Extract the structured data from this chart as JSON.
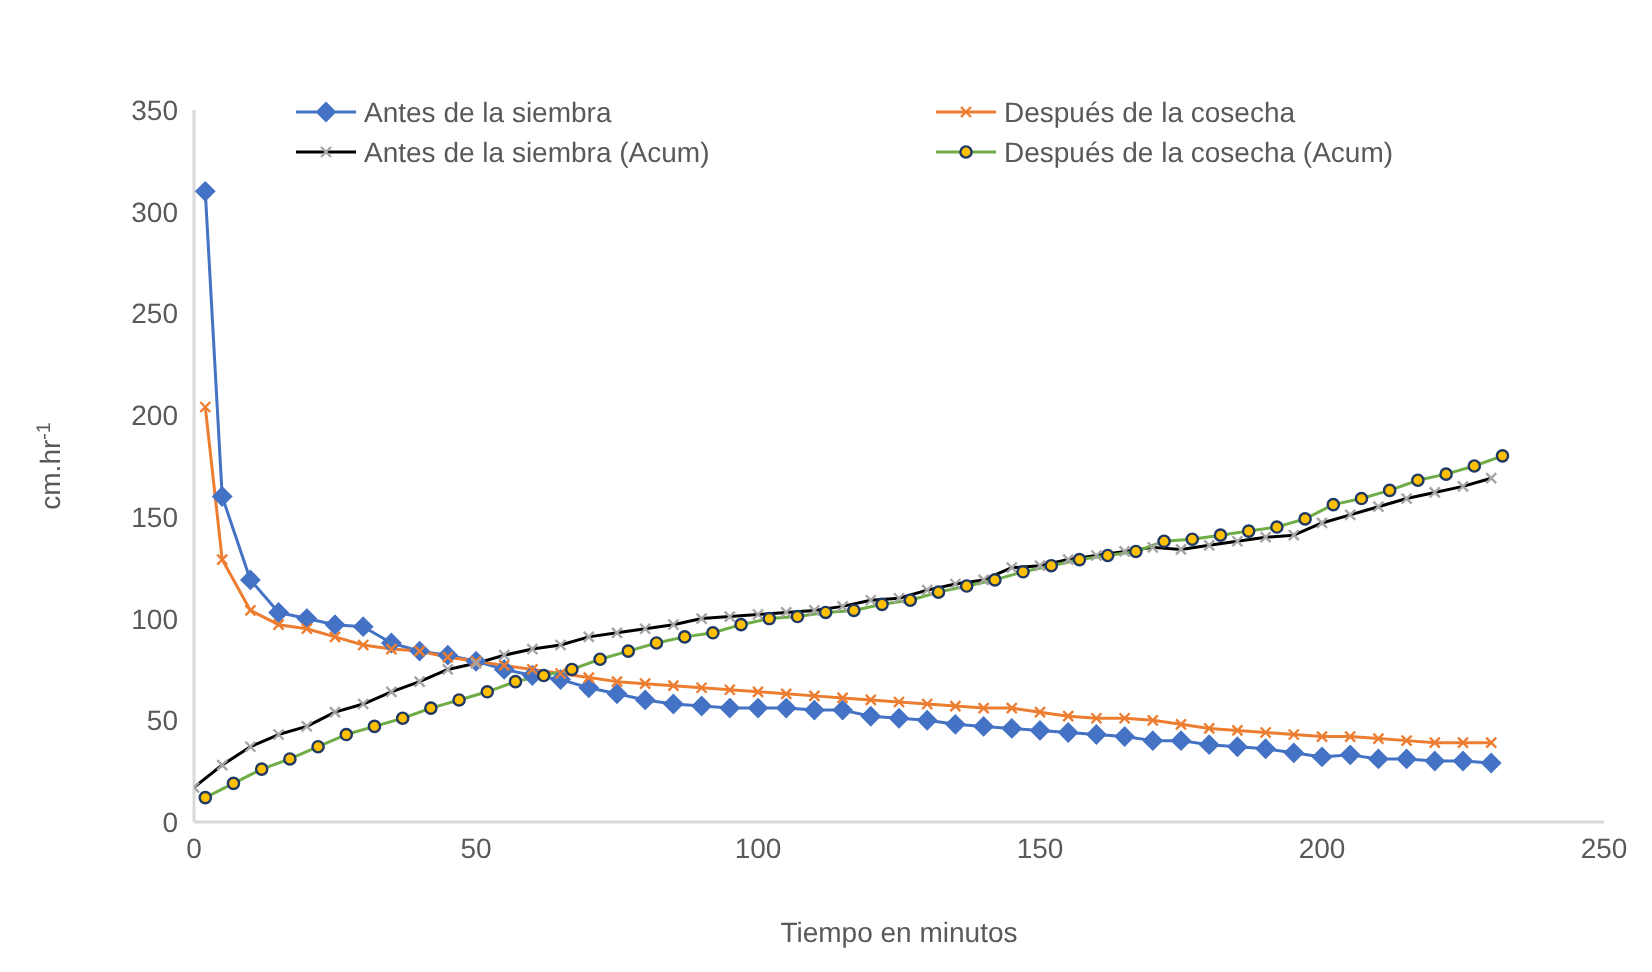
{
  "chart_data": {
    "type": "line",
    "xlabel": "Tiempo en minutos",
    "ylabel": "cm.hr$^{-1}$",
    "xlim": [
      0,
      250
    ],
    "xticks": [
      0,
      50,
      100,
      150,
      200,
      250
    ],
    "ylim": [
      0,
      350
    ],
    "yticks": [
      0,
      50,
      100,
      150,
      200,
      250,
      300,
      350
    ],
    "grid": false,
    "legend": "top",
    "series": [
      {
        "name": "Antes de la siembra",
        "color": "#4472c4",
        "marker": "diamond",
        "x": [
          2,
          5,
          10,
          15,
          20,
          25,
          30,
          35,
          40,
          45,
          50,
          55,
          60,
          65,
          70,
          75,
          80,
          85,
          90,
          95,
          100,
          105,
          110,
          115,
          120,
          125,
          130,
          135,
          140,
          145,
          150,
          155,
          160,
          165,
          170,
          175,
          180,
          185,
          190,
          195,
          200,
          205,
          210,
          215,
          220,
          225,
          230
        ],
        "values": [
          310,
          160,
          119,
          103,
          100,
          97,
          96,
          88,
          84,
          82,
          79,
          75,
          72,
          70,
          66,
          63,
          60,
          58,
          57,
          56,
          56,
          56,
          55,
          55,
          52,
          51,
          50,
          48,
          47,
          46,
          45,
          44,
          43,
          42,
          40,
          40,
          38,
          37,
          36,
          34,
          32,
          33,
          31,
          31,
          30,
          30,
          29
        ]
      },
      {
        "name": "Después de la cosecha",
        "color": "#ed7d31",
        "marker": "cross",
        "x": [
          2,
          5,
          10,
          15,
          20,
          25,
          30,
          35,
          40,
          45,
          50,
          55,
          60,
          65,
          70,
          75,
          80,
          85,
          90,
          95,
          100,
          105,
          110,
          115,
          120,
          125,
          130,
          135,
          140,
          145,
          150,
          155,
          160,
          165,
          170,
          175,
          180,
          185,
          190,
          195,
          200,
          205,
          210,
          215,
          220,
          225,
          230
        ],
        "values": [
          204,
          129,
          104,
          97,
          95,
          91,
          87,
          85,
          84,
          81,
          79,
          77,
          75,
          73,
          71,
          69,
          68,
          67,
          66,
          65,
          64,
          63,
          62,
          61,
          60,
          59,
          58,
          57,
          56,
          56,
          54,
          52,
          51,
          51,
          50,
          48,
          46,
          45,
          44,
          43,
          42,
          42,
          41,
          40,
          39,
          39,
          39
        ]
      },
      {
        "name": "Antes de la siembra (Acum)",
        "color": "#000000",
        "marker": "cross",
        "x": [
          0,
          5,
          10,
          15,
          20,
          25,
          30,
          35,
          40,
          45,
          50,
          55,
          60,
          65,
          70,
          75,
          80,
          85,
          90,
          95,
          100,
          105,
          110,
          115,
          120,
          125,
          130,
          135,
          140,
          145,
          150,
          155,
          160,
          165,
          170,
          175,
          180,
          185,
          190,
          195,
          200,
          205,
          210,
          215,
          220,
          225,
          230
        ],
        "values": [
          17,
          28,
          37,
          43,
          47,
          54,
          58,
          64,
          69,
          75,
          78,
          82,
          85,
          87,
          91,
          93,
          95,
          97,
          100,
          101,
          102,
          103,
          104,
          106,
          109,
          110,
          114,
          117,
          119,
          125,
          126,
          129,
          131,
          133,
          135,
          134,
          136,
          138,
          140,
          141,
          147,
          151,
          155,
          159,
          162,
          165,
          169
        ]
      },
      {
        "name": "Después de la cosecha (Acum)",
        "color": "#70ad47",
        "marker": "circle",
        "x": [
          2,
          7,
          12,
          17,
          22,
          27,
          32,
          37,
          42,
          47,
          52,
          57,
          62,
          67,
          72,
          77,
          82,
          87,
          92,
          97,
          102,
          107,
          112,
          117,
          122,
          127,
          132,
          137,
          142,
          147,
          152,
          157,
          162,
          167,
          172,
          177,
          182,
          187,
          192,
          197,
          202,
          207,
          212,
          217,
          222,
          227,
          232
        ],
        "values": [
          12,
          19,
          26,
          31,
          37,
          43,
          47,
          51,
          56,
          60,
          64,
          69,
          72,
          75,
          80,
          84,
          88,
          91,
          93,
          97,
          100,
          101,
          103,
          104,
          107,
          109,
          113,
          116,
          119,
          123,
          126,
          129,
          131,
          133,
          138,
          139,
          141,
          143,
          145,
          149,
          156,
          159,
          163,
          168,
          171,
          175,
          180
        ]
      }
    ]
  }
}
